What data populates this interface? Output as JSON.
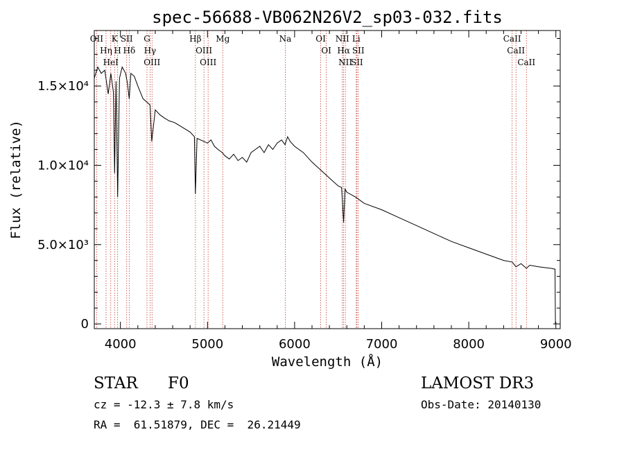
{
  "chart_data": {
    "type": "line",
    "title": "spec-56688-VB062N26V2_sp03-032.fits",
    "xlabel": "Wavelength (Å)",
    "ylabel": "Flux (relative)",
    "xlim": [
      3700,
      9050
    ],
    "ylim": [
      -300,
      18500
    ],
    "x_ticks": [
      4000,
      5000,
      6000,
      7000,
      8000,
      9000
    ],
    "x_tick_labels": [
      "4000",
      "5000",
      "6000",
      "7000",
      "8000",
      "9000"
    ],
    "y_ticks": [
      0,
      5000,
      10000,
      15000
    ],
    "y_tick_labels": [
      "0",
      "5.0×10³",
      "1.0×10⁴",
      "1.5×10⁴"
    ],
    "series": [
      {
        "name": "spectrum",
        "x": [
          3700,
          3740,
          3780,
          3820,
          3860,
          3890,
          3920,
          3933,
          3950,
          3968,
          3990,
          4020,
          4060,
          4080,
          4101,
          4120,
          4160,
          4200,
          4260,
          4300,
          4340,
          4360,
          4400,
          4450,
          4500,
          4560,
          4620,
          4680,
          4740,
          4800,
          4850,
          4861,
          4880,
          4920,
          4960,
          5000,
          5040,
          5080,
          5120,
          5170,
          5200,
          5250,
          5300,
          5350,
          5400,
          5450,
          5500,
          5550,
          5600,
          5650,
          5700,
          5750,
          5800,
          5850,
          5890,
          5920,
          5950,
          6000,
          6100,
          6200,
          6300,
          6400,
          6500,
          6540,
          6563,
          6580,
          6600,
          6700,
          6800,
          7000,
          7200,
          7400,
          7600,
          7800,
          8000,
          8200,
          8400,
          8498,
          8542,
          8600,
          8662,
          8700,
          8800,
          8950,
          8990,
          8995
        ],
        "y": [
          15500,
          16200,
          15800,
          16000,
          14500,
          15800,
          14600,
          9500,
          15300,
          8000,
          15500,
          16200,
          15800,
          15200,
          14200,
          15800,
          15600,
          15000,
          14200,
          14000,
          13800,
          11500,
          13500,
          13200,
          13000,
          12800,
          12700,
          12500,
          12300,
          12100,
          11800,
          8200,
          11700,
          11600,
          11500,
          11400,
          11600,
          11200,
          11000,
          10800,
          10600,
          10400,
          10700,
          10300,
          10500,
          10200,
          10800,
          11000,
          11200,
          10800,
          11300,
          11000,
          11400,
          11600,
          11300,
          11800,
          11500,
          11200,
          10800,
          10200,
          9700,
          9200,
          8700,
          8600,
          6400,
          8500,
          8300,
          8000,
          7600,
          7200,
          6700,
          6200,
          5700,
          5200,
          4800,
          4400,
          4000,
          3900,
          3600,
          3800,
          3500,
          3700,
          3600,
          3500,
          3450,
          0
        ]
      }
    ],
    "spectral_lines": [
      {
        "label": "Hβ",
        "x": 4861
      },
      {
        "label": "Hα",
        "x": 6563
      },
      {
        "label": "Hγ",
        "x": 4340
      },
      {
        "label": "Hδ",
        "x": 4101
      },
      {
        "label": "Hη",
        "x": 3835
      },
      {
        "label": "K",
        "x": 3933
      },
      {
        "label": "H",
        "x": 3968
      },
      {
        "label": "G",
        "x": 4305
      },
      {
        "label": "Mg",
        "x": 5175
      },
      {
        "label": "Na",
        "x": 5893
      },
      {
        "label": "OII",
        "x": 3727
      },
      {
        "label": "OIII",
        "x": 4363
      },
      {
        "label": "OIII",
        "x": 4959
      },
      {
        "label": "OIII",
        "x": 5007
      },
      {
        "label": "OI",
        "x": 6300
      },
      {
        "label": "OI",
        "x": 6364
      },
      {
        "label": "NII",
        "x": 6548
      },
      {
        "label": "NII",
        "x": 6583
      },
      {
        "label": "SII",
        "x": 6716
      },
      {
        "label": "SII",
        "x": 6731
      },
      {
        "label": "SII",
        "x": 4072
      },
      {
        "label": "Li",
        "x": 6708
      },
      {
        "label": "HeI",
        "x": 3889
      },
      {
        "label": "CaII",
        "x": 8498
      },
      {
        "label": "CaII",
        "x": 8542
      },
      {
        "label": "CaII",
        "x": 8662
      }
    ],
    "grid": false,
    "legend": "none"
  },
  "info": {
    "object_class": "STAR",
    "subclass": "F0",
    "survey": "LAMOST DR3",
    "redshift_text": "cz = -12.3 ± 7.8 km/s",
    "obs_date_text": "Obs-Date: 20140130",
    "coords_text": "RA =  61.51879, DEC =  26.21449"
  },
  "colors": {
    "spectrum": "#000000",
    "line_marker": "#c0392b",
    "axis": "#000000"
  }
}
